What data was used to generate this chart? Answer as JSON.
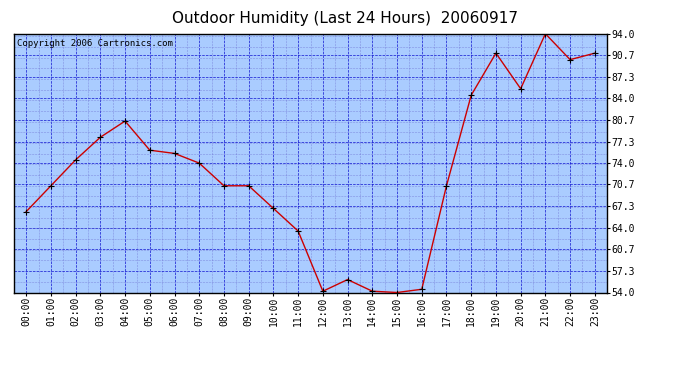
{
  "title": "Outdoor Humidity (Last 24 Hours)  20060917",
  "copyright_text": "Copyright 2006 Cartronics.com",
  "x_labels": [
    "00:00",
    "01:00",
    "02:00",
    "03:00",
    "04:00",
    "05:00",
    "06:00",
    "07:00",
    "08:00",
    "09:00",
    "10:00",
    "11:00",
    "12:00",
    "13:00",
    "14:00",
    "15:00",
    "16:00",
    "17:00",
    "18:00",
    "19:00",
    "20:00",
    "21:00",
    "22:00",
    "23:00"
  ],
  "y_values": [
    66.5,
    70.5,
    74.5,
    78.0,
    80.5,
    76.0,
    75.5,
    74.0,
    70.5,
    70.5,
    67.0,
    63.5,
    54.2,
    56.0,
    54.2,
    54.0,
    54.5,
    70.5,
    84.5,
    91.0,
    85.5,
    94.0,
    90.0,
    91.0
  ],
  "ylim_min": 54.0,
  "ylim_max": 94.0,
  "yticks": [
    54.0,
    57.3,
    60.7,
    64.0,
    67.3,
    70.7,
    74.0,
    77.3,
    80.7,
    84.0,
    87.3,
    90.7,
    94.0
  ],
  "line_color": "#cc0000",
  "marker_color": "#000000",
  "bg_color": "#aaccff",
  "outer_bg_color": "#ffffff",
  "grid_major_color": "#0000cc",
  "grid_minor_color": "#6666cc",
  "title_color": "#000000",
  "title_fontsize": 11,
  "tick_fontsize": 7,
  "copyright_fontsize": 6.5
}
